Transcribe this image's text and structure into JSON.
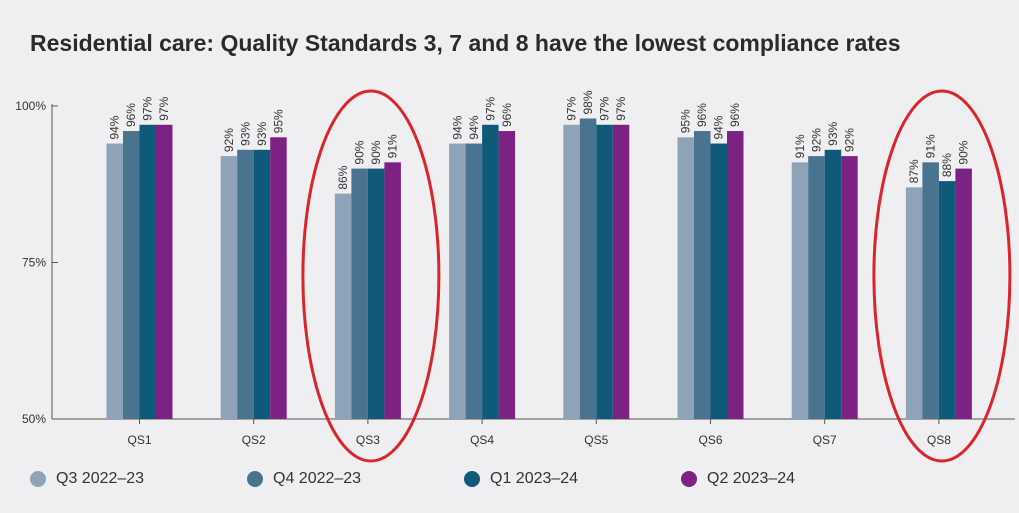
{
  "chart_data": {
    "type": "bar",
    "title": "Residential care: Quality Standards 3, 7 and 8 have the lowest compliance rates",
    "categories": [
      "QS1",
      "QS2",
      "QS3",
      "QS4",
      "QS5",
      "QS6",
      "QS7",
      "QS8"
    ],
    "series": [
      {
        "name": "Q3 2022–23",
        "color": "#8fa3b8",
        "values": [
          94,
          92,
          86,
          94,
          97,
          95,
          91,
          87
        ]
      },
      {
        "name": "Q4 2022–23",
        "color": "#4a7390",
        "values": [
          96,
          93,
          90,
          94,
          98,
          96,
          92,
          91
        ]
      },
      {
        "name": "Q1 2023–24",
        "color": "#0e5a78",
        "values": [
          97,
          93,
          90,
          97,
          97,
          94,
          93,
          88
        ]
      },
      {
        "name": "Q2 2023–24",
        "color": "#7b2282",
        "values": [
          97,
          95,
          91,
          96,
          97,
          96,
          92,
          90
        ]
      }
    ],
    "data_label_suffix": "%",
    "ylim": [
      50,
      100
    ],
    "yticks": [
      50,
      75,
      100
    ],
    "ytick_labels": [
      "50%",
      "75%",
      "100%"
    ],
    "legend_position": "bottom",
    "grid": false,
    "highlighted_categories": [
      "QS3",
      "QS8"
    ],
    "highlight_color": "#d8262a"
  }
}
